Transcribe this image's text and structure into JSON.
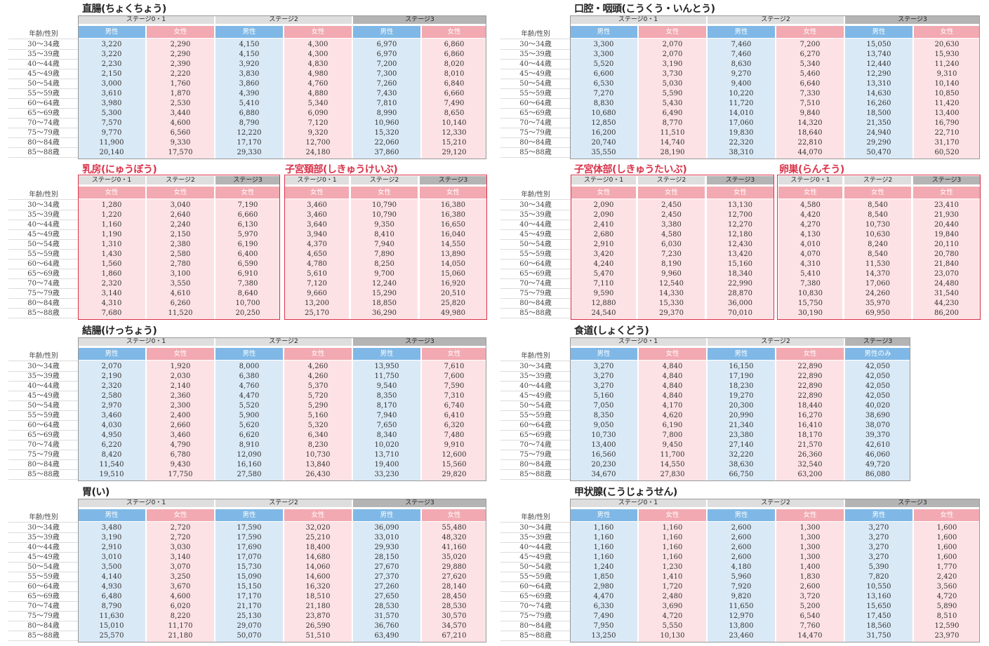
{
  "labels": {
    "age_sex": "年齢/性別",
    "male": "男性",
    "female": "女性",
    "male_only": "男性のみ",
    "stage01": "ステージ0・1",
    "stage2": "ステージ2",
    "stage3": "ステージ3"
  },
  "ages": [
    "30～34歳",
    "35～39歳",
    "40～44歳",
    "45～49歳",
    "50～54歳",
    "55～59歳",
    "60～64歳",
    "65～69歳",
    "70～74歳",
    "75～79歳",
    "80～84歳",
    "85～88歳"
  ],
  "tables": [
    {
      "id": "rectum",
      "title": "直腸(ちょくちょう)",
      "color": "black",
      "stages": [
        "ステージ0・1",
        "ステージ2",
        "ステージ3"
      ],
      "columns": [
        {
          "sex": "男性",
          "values": [
            "3,220",
            "3,220",
            "2,230",
            "2,150",
            "3,000",
            "3,610",
            "3,980",
            "5,300",
            "7,570",
            "9,770",
            "11,900",
            "20,140"
          ]
        },
        {
          "sex": "女性",
          "values": [
            "2,290",
            "2,290",
            "2,390",
            "2,220",
            "1,760",
            "1,870",
            "2,530",
            "3,440",
            "4,600",
            "6,560",
            "9,330",
            "17,570"
          ]
        },
        {
          "sex": "男性",
          "values": [
            "4,150",
            "4,150",
            "3,920",
            "3,830",
            "3,860",
            "4,390",
            "5,410",
            "6,880",
            "8,790",
            "12,220",
            "17,170",
            "29,330"
          ]
        },
        {
          "sex": "女性",
          "values": [
            "4,300",
            "4,300",
            "4,830",
            "4,980",
            "4,760",
            "4,880",
            "5,340",
            "6,090",
            "7,120",
            "9,320",
            "12,700",
            "24,180"
          ]
        },
        {
          "sex": "男性",
          "values": [
            "6,970",
            "6,970",
            "7,200",
            "7,300",
            "7,260",
            "7,430",
            "7,810",
            "8,990",
            "10,960",
            "15,320",
            "22,060",
            "37,860"
          ]
        },
        {
          "sex": "女性",
          "values": [
            "6,860",
            "6,860",
            "8,020",
            "8,010",
            "6,840",
            "6,660",
            "7,490",
            "8,650",
            "10,140",
            "12,330",
            "15,210",
            "29,120"
          ]
        }
      ]
    },
    {
      "id": "oral",
      "title": "口腔・咽頭(こうくう・いんとう)",
      "color": "black",
      "stages": [
        "ステージ0・1",
        "ステージ2",
        "ステージ3"
      ],
      "columns": [
        {
          "sex": "男性",
          "values": [
            "3,300",
            "3,300",
            "5,520",
            "6,600",
            "6,530",
            "7,270",
            "8,830",
            "10,680",
            "12,850",
            "16,200",
            "20,740",
            "35,550"
          ]
        },
        {
          "sex": "女性",
          "values": [
            "2,070",
            "2,070",
            "3,190",
            "3,730",
            "5,030",
            "5,590",
            "5,430",
            "6,490",
            "8,770",
            "11,510",
            "14,740",
            "28,190"
          ]
        },
        {
          "sex": "男性",
          "values": [
            "7,460",
            "7,460",
            "8,630",
            "9,270",
            "9,400",
            "10,220",
            "11,720",
            "14,010",
            "17,060",
            "19,830",
            "22,320",
            "38,310"
          ]
        },
        {
          "sex": "女性",
          "values": [
            "7,200",
            "6,270",
            "5,340",
            "5,460",
            "6,640",
            "7,330",
            "7,510",
            "9,840",
            "14,320",
            "18,640",
            "22,810",
            "44,070"
          ]
        },
        {
          "sex": "男性",
          "values": [
            "15,050",
            "13,740",
            "12,440",
            "12,290",
            "13,310",
            "14,630",
            "16,260",
            "18,500",
            "21,350",
            "24,940",
            "29,290",
            "50,470"
          ]
        },
        {
          "sex": "女性",
          "values": [
            "20,630",
            "15,930",
            "11,240",
            "9,310",
            "10,140",
            "10,850",
            "11,420",
            "13,400",
            "16,790",
            "22,710",
            "31,170",
            "60,520"
          ]
        }
      ]
    },
    {
      "id": "breast",
      "title": "乳房(にゅうぼう)",
      "color": "red",
      "stages": [
        "ステージ0・1",
        "ステージ2",
        "ステージ3"
      ],
      "columns": [
        {
          "sex": "女性",
          "values": [
            "1,280",
            "1,220",
            "1,160",
            "1,190",
            "1,310",
            "1,430",
            "1,560",
            "1,860",
            "2,320",
            "3,140",
            "4,310",
            "7,680"
          ]
        },
        {
          "sex": "女性",
          "values": [
            "3,040",
            "2,640",
            "2,240",
            "2,150",
            "2,380",
            "2,580",
            "2,780",
            "3,100",
            "3,550",
            "4,610",
            "6,260",
            "11,520"
          ]
        },
        {
          "sex": "女性",
          "values": [
            "7,190",
            "6,660",
            "6,130",
            "5,970",
            "6,190",
            "6,400",
            "6,590",
            "6,910",
            "7,380",
            "8,640",
            "10,700",
            "20,250"
          ]
        }
      ]
    },
    {
      "id": "cervix",
      "title": "子宮頚部(しきゅうけいぶ)",
      "color": "red",
      "stages": [
        "ステージ0・1",
        "ステージ2",
        "ステージ3"
      ],
      "columns": [
        {
          "sex": "女性",
          "values": [
            "3,460",
            "3,460",
            "3,640",
            "3,940",
            "4,370",
            "4,650",
            "4,780",
            "5,610",
            "7,120",
            "9,660",
            "13,200",
            "25,170"
          ]
        },
        {
          "sex": "女性",
          "values": [
            "10,790",
            "10,790",
            "9,350",
            "8,410",
            "7,940",
            "7,890",
            "8,250",
            "9,700",
            "12,240",
            "15,290",
            "18,850",
            "36,290"
          ]
        },
        {
          "sex": "女性",
          "values": [
            "16,380",
            "16,380",
            "16,650",
            "16,040",
            "14,550",
            "13,890",
            "14,050",
            "15,060",
            "16,920",
            "20,510",
            "25,820",
            "49,980"
          ]
        }
      ]
    },
    {
      "id": "uterus",
      "title": "子宮体部(しきゅうたいぶ)",
      "color": "red",
      "stages": [
        "ステージ0・1",
        "ステージ2",
        "ステージ3"
      ],
      "columns": [
        {
          "sex": "女性",
          "values": [
            "2,090",
            "2,090",
            "2,410",
            "2,680",
            "2,910",
            "3,420",
            "4,240",
            "5,470",
            "7,110",
            "9,590",
            "12,880",
            "24,540"
          ]
        },
        {
          "sex": "女性",
          "values": [
            "2,450",
            "2,450",
            "3,380",
            "4,580",
            "6,030",
            "7,230",
            "8,190",
            "9,960",
            "12,540",
            "14,330",
            "15,330",
            "29,370"
          ]
        },
        {
          "sex": "女性",
          "values": [
            "13,130",
            "12,700",
            "12,270",
            "12,180",
            "12,430",
            "13,420",
            "15,160",
            "18,340",
            "22,990",
            "28,870",
            "36,000",
            "70,010"
          ]
        }
      ]
    },
    {
      "id": "ovary",
      "title": "卵巣(らんそう)",
      "color": "red",
      "stages": [
        "ステージ0・1",
        "ステージ2",
        "ステージ3"
      ],
      "columns": [
        {
          "sex": "女性",
          "values": [
            "4,580",
            "4,420",
            "4,270",
            "4,130",
            "4,010",
            "4,070",
            "4,310",
            "5,410",
            "7,380",
            "10,830",
            "15,750",
            "30,190"
          ]
        },
        {
          "sex": "女性",
          "values": [
            "8,540",
            "8,540",
            "10,730",
            "10,630",
            "8,240",
            "8,540",
            "11,530",
            "14,370",
            "17,060",
            "24,260",
            "35,970",
            "69,950"
          ]
        },
        {
          "sex": "女性",
          "values": [
            "23,410",
            "21,930",
            "20,440",
            "19,840",
            "20,110",
            "20,780",
            "21,840",
            "23,070",
            "24,480",
            "31,540",
            "44,230",
            "86,200"
          ]
        }
      ]
    },
    {
      "id": "colon",
      "title": "結腸(けっちょう)",
      "color": "black",
      "stages": [
        "ステージ0・1",
        "ステージ2",
        "ステージ3"
      ],
      "columns": [
        {
          "sex": "男性",
          "values": [
            "2,070",
            "2,190",
            "2,320",
            "2,580",
            "2,970",
            "3,460",
            "4,030",
            "4,950",
            "6,220",
            "8,420",
            "11,540",
            "19,510"
          ]
        },
        {
          "sex": "女性",
          "values": [
            "1,920",
            "2,030",
            "2,140",
            "2,360",
            "2,300",
            "2,400",
            "2,660",
            "3,460",
            "4,790",
            "6,780",
            "9,430",
            "17,750"
          ]
        },
        {
          "sex": "男性",
          "values": [
            "8,000",
            "6,380",
            "4,760",
            "4,470",
            "5,520",
            "5,900",
            "5,620",
            "6,620",
            "8,910",
            "12,090",
            "16,160",
            "27,580"
          ]
        },
        {
          "sex": "女性",
          "values": [
            "4,260",
            "4,260",
            "5,370",
            "5,720",
            "5,290",
            "5,160",
            "5,320",
            "6,340",
            "8,230",
            "10,730",
            "13,840",
            "26,430"
          ]
        },
        {
          "sex": "男性",
          "values": [
            "13,950",
            "11,750",
            "9,540",
            "8,350",
            "8,170",
            "7,940",
            "7,650",
            "8,340",
            "10,020",
            "13,710",
            "19,400",
            "33,230"
          ]
        },
        {
          "sex": "女性",
          "values": [
            "7,610",
            "7,600",
            "7,590",
            "7,310",
            "6,740",
            "6,410",
            "6,320",
            "7,480",
            "9,910",
            "12,600",
            "15,560",
            "29,820"
          ]
        }
      ]
    },
    {
      "id": "esophagus",
      "title": "食道(しょくどう)",
      "color": "black",
      "stages": [
        "ステージ0・1",
        "ステージ2",
        "ステージ3"
      ],
      "columns": [
        {
          "sex": "男性",
          "values": [
            "3,270",
            "3,270",
            "3,270",
            "5,160",
            "7,050",
            "8,350",
            "9,050",
            "10,730",
            "13,400",
            "16,560",
            "20,230",
            "34,670"
          ]
        },
        {
          "sex": "女性",
          "values": [
            "4,840",
            "4,840",
            "4,840",
            "4,840",
            "4,170",
            "4,620",
            "6,190",
            "7,800",
            "9,450",
            "11,700",
            "14,550",
            "27,830"
          ]
        },
        {
          "sex": "男性",
          "values": [
            "16,150",
            "17,190",
            "18,230",
            "19,270",
            "20,300",
            "20,990",
            "21,340",
            "23,380",
            "27,140",
            "32,220",
            "38,630",
            "66,750"
          ]
        },
        {
          "sex": "女性",
          "values": [
            "22,890",
            "22,890",
            "22,890",
            "22,890",
            "18,440",
            "16,270",
            "16,410",
            "18,170",
            "21,570",
            "26,360",
            "32,540",
            "63,200"
          ]
        },
        {
          "sex": "男性のみ",
          "values": [
            "42,050",
            "42,050",
            "42,050",
            "42,050",
            "40,020",
            "38,690",
            "38,070",
            "39,370",
            "42,610",
            "46,060",
            "49,720",
            "86,080"
          ]
        }
      ]
    },
    {
      "id": "stomach",
      "title": "胃(い)",
      "color": "black",
      "stages": [
        "ステージ0・1",
        "ステージ2",
        "ステージ3"
      ],
      "columns": [
        {
          "sex": "男性",
          "values": [
            "3,480",
            "3,190",
            "2,910",
            "3,010",
            "3,500",
            "4,140",
            "4,930",
            "6,480",
            "8,790",
            "11,630",
            "15,010",
            "25,570"
          ]
        },
        {
          "sex": "女性",
          "values": [
            "2,720",
            "2,720",
            "3,030",
            "3,140",
            "3,070",
            "3,250",
            "3,670",
            "4,600",
            "6,020",
            "8,220",
            "11,170",
            "21,180"
          ]
        },
        {
          "sex": "男性",
          "values": [
            "17,590",
            "17,590",
            "17,690",
            "17,070",
            "15,730",
            "15,090",
            "15,150",
            "17,170",
            "21,170",
            "25,130",
            "29,070",
            "50,070"
          ]
        },
        {
          "sex": "女性",
          "values": [
            "32,020",
            "25,210",
            "18,400",
            "14,680",
            "14,060",
            "14,600",
            "16,320",
            "18,510",
            "21,180",
            "23,870",
            "26,590",
            "51,510"
          ]
        },
        {
          "sex": "男性",
          "values": [
            "36,090",
            "33,010",
            "29,930",
            "28,150",
            "27,670",
            "27,370",
            "27,260",
            "27,650",
            "28,530",
            "31,570",
            "36,760",
            "63,490"
          ]
        },
        {
          "sex": "女性",
          "values": [
            "55,480",
            "48,320",
            "41,160",
            "35,020",
            "29,880",
            "27,620",
            "28,140",
            "28,450",
            "28,530",
            "30,570",
            "34,570",
            "67,210"
          ]
        }
      ]
    },
    {
      "id": "thyroid",
      "title": "甲状腺(こうじょうせん)",
      "color": "black",
      "stages": [
        "ステージ0・1",
        "ステージ2",
        "ステージ3"
      ],
      "columns": [
        {
          "sex": "男性",
          "values": [
            "1,160",
            "1,160",
            "1,160",
            "1,160",
            "1,240",
            "1,850",
            "2,980",
            "4,470",
            "6,330",
            "7,490",
            "7,950",
            "13,250"
          ]
        },
        {
          "sex": "女性",
          "values": [
            "1,160",
            "1,160",
            "1,160",
            "1,160",
            "1,230",
            "1,410",
            "1,720",
            "2,480",
            "3,690",
            "4,720",
            "5,550",
            "10,130"
          ]
        },
        {
          "sex": "男性",
          "values": [
            "2,600",
            "2,600",
            "2,600",
            "2,600",
            "4,180",
            "5,960",
            "7,920",
            "9,820",
            "11,650",
            "12,970",
            "13,800",
            "23,460"
          ]
        },
        {
          "sex": "女性",
          "values": [
            "1,300",
            "1,300",
            "1,300",
            "1,300",
            "1,400",
            "1,830",
            "2,600",
            "3,720",
            "5,200",
            "6,540",
            "7,760",
            "14,470"
          ]
        },
        {
          "sex": "男性",
          "values": [
            "3,270",
            "3,270",
            "3,270",
            "3,270",
            "5,390",
            "7,820",
            "10,550",
            "13,160",
            "15,650",
            "17,450",
            "18,560",
            "31,750"
          ]
        },
        {
          "sex": "女性",
          "values": [
            "1,600",
            "1,600",
            "1,600",
            "1,600",
            "1,770",
            "2,420",
            "3,560",
            "4,720",
            "5,890",
            "8,510",
            "12,590",
            "23,970"
          ]
        }
      ]
    }
  ]
}
